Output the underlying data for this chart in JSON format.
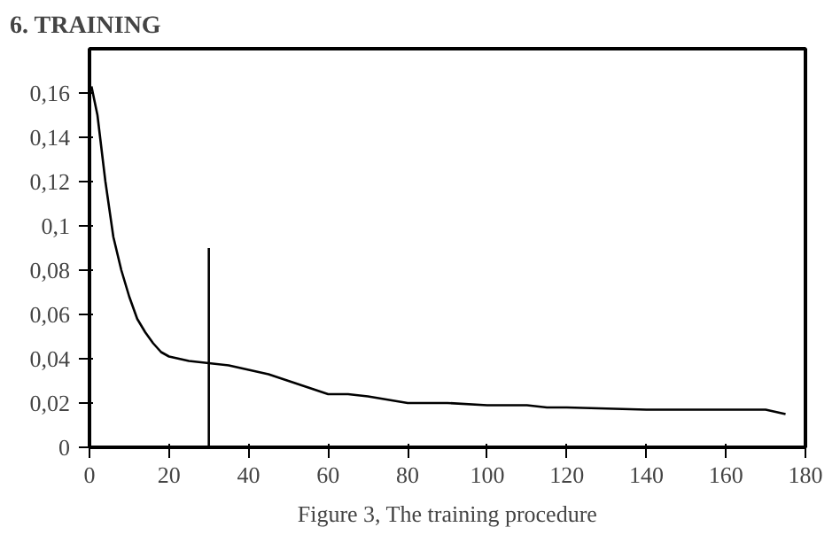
{
  "chart_data": {
    "type": "line",
    "title": "6. TRAINING",
    "annotations": [
      "Figure 3, The training procedure"
    ],
    "xlim": [
      0,
      180
    ],
    "ylim": [
      0,
      0.18
    ],
    "xticks": [
      0,
      20,
      40,
      60,
      80,
      100,
      120,
      140,
      160,
      180
    ],
    "yticks": [
      0,
      {
        "value": 0.02,
        "label": "0,02"
      },
      {
        "value": 0.04,
        "label": "0,04"
      },
      {
        "value": 0.06,
        "label": "0,06"
      },
      {
        "value": 0.08,
        "label": "0,08"
      },
      {
        "value": 0.1,
        "label": "0,1"
      },
      {
        "value": 0.12,
        "label": "0,12"
      },
      {
        "value": 0.14,
        "label": "0,14"
      },
      {
        "value": 0.16,
        "label": "0,16"
      }
    ],
    "grid": false,
    "series": [
      {
        "color": "#000000",
        "x": [
          0.5,
          2,
          4,
          6,
          8,
          10,
          12,
          14,
          16,
          18,
          20,
          25,
          30,
          35,
          40,
          45,
          50,
          55,
          60,
          65,
          70,
          80,
          90,
          100,
          110,
          115,
          120,
          140,
          160,
          170,
          175
        ],
        "values": [
          0.163,
          0.15,
          0.12,
          0.095,
          0.08,
          0.068,
          0.058,
          0.052,
          0.047,
          0.043,
          0.041,
          0.039,
          0.038,
          0.037,
          0.035,
          0.033,
          0.03,
          0.027,
          0.024,
          0.024,
          0.023,
          0.02,
          0.02,
          0.019,
          0.019,
          0.018,
          0.018,
          0.017,
          0.017,
          0.017,
          0.015
        ]
      },
      {
        "color": "#000000",
        "x": [
          30,
          30
        ],
        "values": [
          0,
          0.09
        ]
      }
    ]
  }
}
